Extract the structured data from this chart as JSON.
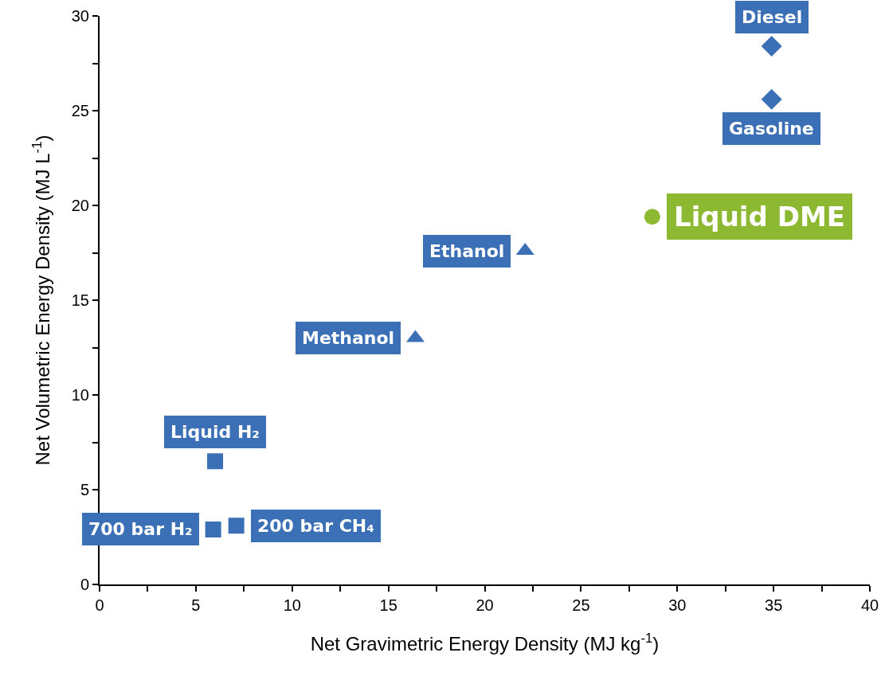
{
  "chart_data": {
    "type": "scatter",
    "xlabel": "Net Gravimetric Energy Density (MJ kg$^{-1}$)",
    "ylabel": "Net Volumetric Energy Density (MJ L$^{-1}$)",
    "xlim": [
      0,
      40
    ],
    "ylim": [
      0,
      30
    ],
    "xticks": [
      0,
      {
        "value": 2.5,
        "label": null
      },
      5,
      {
        "value": 7.5,
        "label": null
      },
      10,
      {
        "value": 12.5,
        "label": null
      },
      15,
      {
        "value": 17.5,
        "label": null
      },
      20,
      {
        "value": 22.5,
        "label": null
      },
      25,
      {
        "value": 27.5,
        "label": null
      },
      30,
      {
        "value": 32.5,
        "label": null
      },
      35,
      {
        "value": 37.5,
        "label": null
      },
      40
    ],
    "yticks": [
      0,
      {
        "value": 2.5,
        "label": null
      },
      5,
      {
        "value": 7.5,
        "label": null
      },
      10,
      {
        "value": 12.5,
        "label": null
      },
      15,
      {
        "value": 17.5,
        "label": null
      },
      20,
      {
        "value": 22.5,
        "label": null
      },
      25,
      {
        "value": 27.5,
        "label": null
      },
      30
    ],
    "grid": false,
    "legend": false,
    "series": [
      {
        "name": "Diesel",
        "color": "#3b6fb6",
        "marker": "diamond",
        "x": [
          34.9
        ],
        "values": [
          28.4
        ]
      },
      {
        "name": "Gasoline",
        "color": "#3b6fb6",
        "marker": "diamond",
        "x": [
          34.9
        ],
        "values": [
          25.6
        ]
      },
      {
        "name": "Liquid DME",
        "color": "#8db832",
        "marker": "circle",
        "x": [
          28.7
        ],
        "values": [
          19.4
        ]
      },
      {
        "name": "Ethanol",
        "color": "#3b6fb6",
        "marker": "triangle",
        "x": [
          22.1
        ],
        "values": [
          17.6
        ]
      },
      {
        "name": "Methanol",
        "color": "#3b6fb6",
        "marker": "triangle",
        "x": [
          16.4
        ],
        "values": [
          13.0
        ]
      },
      {
        "name": "Liquid H₂",
        "color": "#3b6fb6",
        "marker": "square",
        "x": [
          6.0
        ],
        "values": [
          6.5
        ]
      },
      {
        "name": "700 bar H₂",
        "color": "#3b6fb6",
        "marker": "square",
        "x": [
          5.9
        ],
        "values": [
          2.9
        ]
      },
      {
        "name": "200 bar CH₄",
        "color": "#3b6fb6",
        "marker": "square",
        "x": [
          7.1
        ],
        "values": [
          3.1
        ]
      }
    ]
  }
}
